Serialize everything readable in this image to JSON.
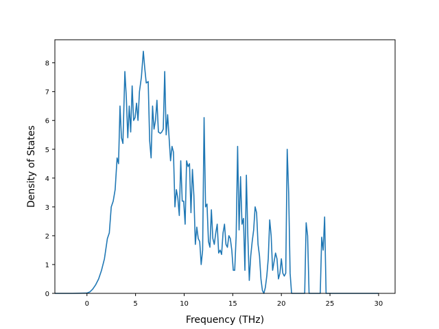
{
  "chart_data": {
    "type": "line",
    "title": "",
    "xlabel": "Frequency (THz)",
    "ylabel": "Density of States",
    "xlim": [
      -3.3,
      31.7
    ],
    "ylim": [
      0,
      8.8
    ],
    "xticks": [
      0,
      5,
      10,
      15,
      20,
      25,
      30
    ],
    "yticks": [
      0,
      1,
      2,
      3,
      4,
      5,
      6,
      7,
      8
    ],
    "xtick_labels": [
      "0",
      "5",
      "10",
      "15",
      "20",
      "25",
      "30"
    ],
    "ytick_labels": [
      "0",
      "1",
      "2",
      "3",
      "4",
      "5",
      "6",
      "7",
      "8"
    ],
    "grid": false,
    "legend": "none",
    "series": [
      {
        "color": "#1f77b4",
        "points": [
          [
            -3.3,
            0
          ],
          [
            -1.5,
            0
          ],
          [
            0,
            0.01
          ],
          [
            0.3,
            0.05
          ],
          [
            0.6,
            0.15
          ],
          [
            0.9,
            0.3
          ],
          [
            1.2,
            0.5
          ],
          [
            1.5,
            0.8
          ],
          [
            1.8,
            1.2
          ],
          [
            2.1,
            1.9
          ],
          [
            2.3,
            2.1
          ],
          [
            2.5,
            3.0
          ],
          [
            2.7,
            3.2
          ],
          [
            2.9,
            3.6
          ],
          [
            3.1,
            4.7
          ],
          [
            3.25,
            4.5
          ],
          [
            3.4,
            6.5
          ],
          [
            3.55,
            5.4
          ],
          [
            3.7,
            5.2
          ],
          [
            3.9,
            7.7
          ],
          [
            4.05,
            6.8
          ],
          [
            4.2,
            5.4
          ],
          [
            4.35,
            6.5
          ],
          [
            4.5,
            5.6
          ],
          [
            4.65,
            7.2
          ],
          [
            4.8,
            6.0
          ],
          [
            4.95,
            6.1
          ],
          [
            5.1,
            6.6
          ],
          [
            5.25,
            6.0
          ],
          [
            5.4,
            7.0
          ],
          [
            5.6,
            7.5
          ],
          [
            5.8,
            8.4
          ],
          [
            5.95,
            7.8
          ],
          [
            6.1,
            7.3
          ],
          [
            6.3,
            7.35
          ],
          [
            6.45,
            5.3
          ],
          [
            6.6,
            4.7
          ],
          [
            6.75,
            6.5
          ],
          [
            6.9,
            5.7
          ],
          [
            7.05,
            6.0
          ],
          [
            7.2,
            6.7
          ],
          [
            7.35,
            5.6
          ],
          [
            7.55,
            5.55
          ],
          [
            7.7,
            5.6
          ],
          [
            7.85,
            5.7
          ],
          [
            8.0,
            7.7
          ],
          [
            8.15,
            5.5
          ],
          [
            8.3,
            6.2
          ],
          [
            8.45,
            5.4
          ],
          [
            8.6,
            4.6
          ],
          [
            8.75,
            5.1
          ],
          [
            8.9,
            4.9
          ],
          [
            9.05,
            3.0
          ],
          [
            9.2,
            3.6
          ],
          [
            9.35,
            3.3
          ],
          [
            9.5,
            2.7
          ],
          [
            9.65,
            4.6
          ],
          [
            9.8,
            3.2
          ],
          [
            9.95,
            3.2
          ],
          [
            10.1,
            2.4
          ],
          [
            10.25,
            4.6
          ],
          [
            10.4,
            4.4
          ],
          [
            10.55,
            4.5
          ],
          [
            10.7,
            2.8
          ],
          [
            10.85,
            4.3
          ],
          [
            11.0,
            3.4
          ],
          [
            11.15,
            1.7
          ],
          [
            11.3,
            2.3
          ],
          [
            11.45,
            1.9
          ],
          [
            11.6,
            1.8
          ],
          [
            11.75,
            1.0
          ],
          [
            11.9,
            1.5
          ],
          [
            12.05,
            6.1
          ],
          [
            12.2,
            3.0
          ],
          [
            12.35,
            3.1
          ],
          [
            12.5,
            1.8
          ],
          [
            12.65,
            1.6
          ],
          [
            12.8,
            2.9
          ],
          [
            12.95,
            1.9
          ],
          [
            13.1,
            1.7
          ],
          [
            13.25,
            2.1
          ],
          [
            13.4,
            2.4
          ],
          [
            13.55,
            1.4
          ],
          [
            13.7,
            1.5
          ],
          [
            13.85,
            1.35
          ],
          [
            14.0,
            2.1
          ],
          [
            14.15,
            2.4
          ],
          [
            14.3,
            1.7
          ],
          [
            14.45,
            1.6
          ],
          [
            14.6,
            2.0
          ],
          [
            14.75,
            1.9
          ],
          [
            14.9,
            1.5
          ],
          [
            15.05,
            0.8
          ],
          [
            15.2,
            0.8
          ],
          [
            15.35,
            2.0
          ],
          [
            15.5,
            5.1
          ],
          [
            15.65,
            2.2
          ],
          [
            15.8,
            4.05
          ],
          [
            15.95,
            2.4
          ],
          [
            16.1,
            2.6
          ],
          [
            16.25,
            0.8
          ],
          [
            16.4,
            4.1
          ],
          [
            16.55,
            2.0
          ],
          [
            16.7,
            0.45
          ],
          [
            16.85,
            1.3
          ],
          [
            17.0,
            1.8
          ],
          [
            17.15,
            2.2
          ],
          [
            17.3,
            3.0
          ],
          [
            17.45,
            2.8
          ],
          [
            17.6,
            1.7
          ],
          [
            17.75,
            1.3
          ],
          [
            17.9,
            0.5
          ],
          [
            18.05,
            0.1
          ],
          [
            18.2,
            0.0
          ],
          [
            18.35,
            0.2
          ],
          [
            18.5,
            0.6
          ],
          [
            18.65,
            1.2
          ],
          [
            18.8,
            2.55
          ],
          [
            18.95,
            2.0
          ],
          [
            19.1,
            0.8
          ],
          [
            19.25,
            1.1
          ],
          [
            19.4,
            1.4
          ],
          [
            19.55,
            1.2
          ],
          [
            19.7,
            0.5
          ],
          [
            19.85,
            0.7
          ],
          [
            20.0,
            1.2
          ],
          [
            20.15,
            0.7
          ],
          [
            20.3,
            0.6
          ],
          [
            20.45,
            0.7
          ],
          [
            20.6,
            5.0
          ],
          [
            20.75,
            3.5
          ],
          [
            20.9,
            0.7
          ],
          [
            21.05,
            0.0
          ],
          [
            22.4,
            0.0
          ],
          [
            22.55,
            2.45
          ],
          [
            22.7,
            2.0
          ],
          [
            22.85,
            0.0
          ],
          [
            24.0,
            0.0
          ],
          [
            24.15,
            1.95
          ],
          [
            24.3,
            1.5
          ],
          [
            24.45,
            2.65
          ],
          [
            24.6,
            0.0
          ],
          [
            30.0,
            0.0
          ]
        ]
      }
    ]
  }
}
